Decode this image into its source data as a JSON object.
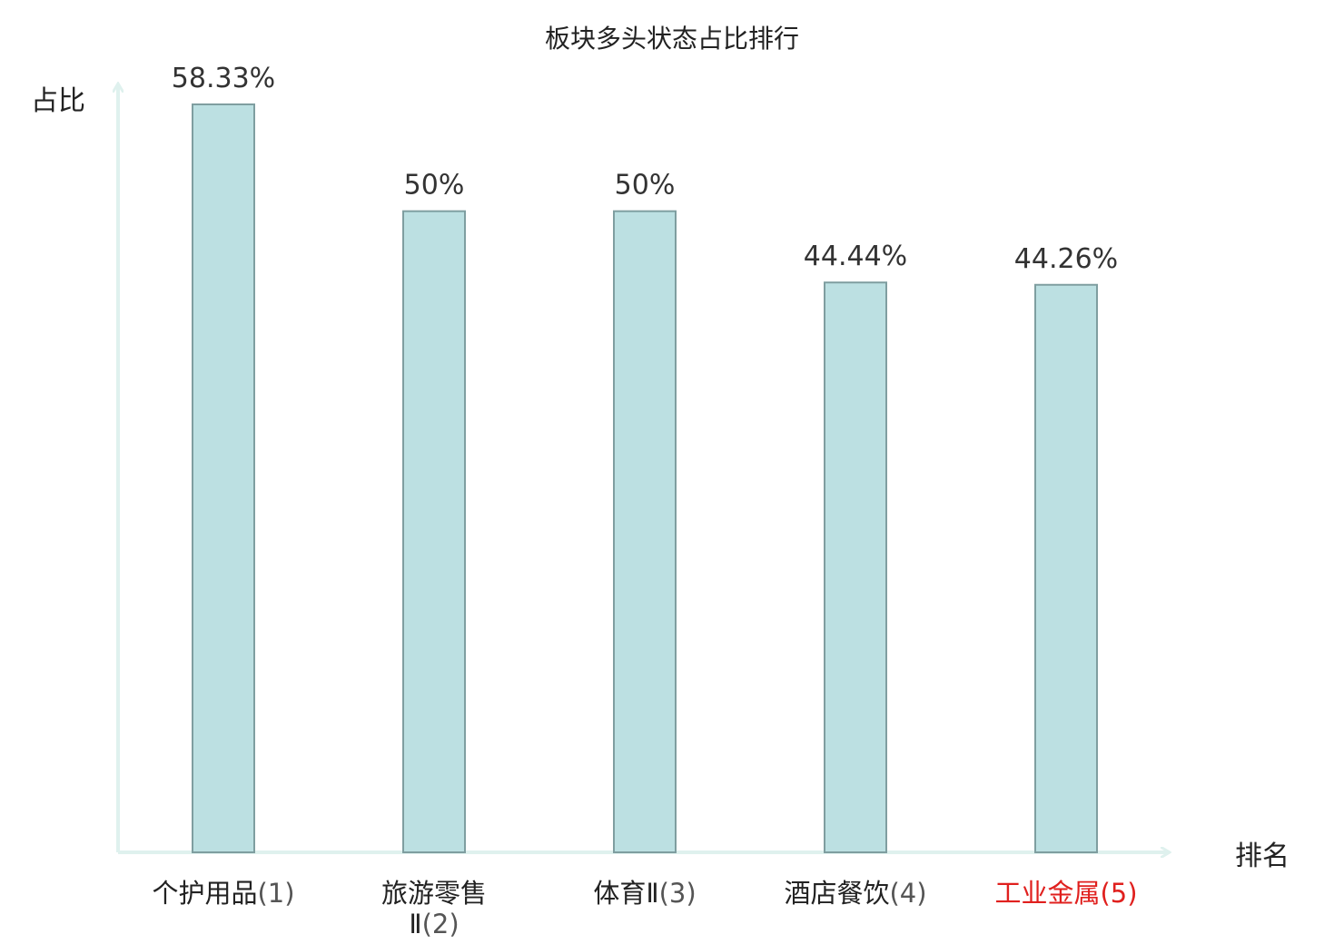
{
  "chart_data": {
    "type": "bar",
    "title": "板块多头状态占比排行",
    "xlabel": "排名",
    "ylabel": "占比",
    "categories": [
      {
        "name_lines": [
          "个护用品"
        ],
        "rank": "(1)"
      },
      {
        "name_lines": [
          "旅游零售",
          "Ⅱ"
        ],
        "rank": "(2)"
      },
      {
        "name_lines": [
          "体育Ⅱ"
        ],
        "rank": "(3)"
      },
      {
        "name_lines": [
          "酒店餐饮"
        ],
        "rank": "(4)"
      },
      {
        "name_lines": [
          "工业金属"
        ],
        "rank": "(5)",
        "highlight": true
      }
    ],
    "values": [
      58.33,
      50,
      50,
      44.44,
      44.26
    ],
    "value_labels": [
      "58.33%",
      "50%",
      "50%",
      "44.44%",
      "44.26%"
    ],
    "ylim": [
      0,
      58.33
    ],
    "grid": false,
    "legend": "none"
  },
  "colors": {
    "bar_fill": "#bce0e2",
    "bar_stroke": "#7f9ea0",
    "axis": "#dff1ee",
    "text": "#222222",
    "rank_text": "#555555",
    "highlight": "#e0201e"
  }
}
